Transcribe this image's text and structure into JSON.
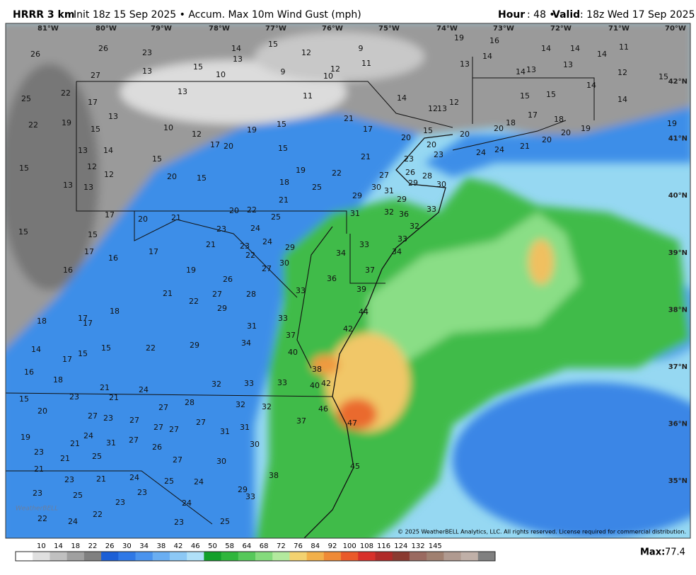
{
  "header": {
    "model": "HRRR 3 km",
    "init": "Init 18z 15 Sep 2025 • Accum. Max 10m Wind Gust (mph)",
    "hour_label": "Hour",
    "hour_text": ": 48 • ",
    "valid_label": "Valid",
    "valid_text": ": 18z Wed 17 Sep 2025"
  },
  "longitudes": [
    "81°W",
    "80°W",
    "79°W",
    "78°W",
    "77°W",
    "76°W",
    "75°W",
    "74°W",
    "73°W",
    "72°W",
    "71°W",
    "70°W"
  ],
  "latitudes": [
    "42°N",
    "41°N",
    "40°N",
    "39°N",
    "38°N",
    "37°N",
    "36°N",
    "35°N"
  ],
  "stations": {
    "values": [
      26,
      26,
      23,
      13,
      27,
      15,
      10,
      14,
      13,
      15,
      12,
      9,
      9,
      12,
      11,
      10,
      25,
      22,
      17,
      13,
      13,
      11,
      14,
      12,
      13,
      12,
      19,
      16,
      14,
      14,
      14,
      11,
      13,
      14,
      14,
      13,
      13,
      12,
      15,
      15,
      15,
      14,
      14,
      22,
      19,
      15,
      10,
      12,
      17,
      20,
      19,
      15,
      15,
      21,
      17,
      20,
      15,
      20,
      20,
      20,
      18,
      17,
      18,
      20,
      19,
      19,
      24,
      24,
      21,
      20,
      23,
      23,
      21,
      13,
      14,
      15,
      12,
      12,
      20,
      15,
      19,
      22,
      18,
      25,
      27,
      26,
      28,
      29,
      30,
      30,
      31,
      29,
      29,
      21,
      15,
      13,
      13,
      20,
      22,
      25,
      33,
      31,
      32,
      36,
      32,
      33,
      34,
      15,
      15,
      17,
      20,
      21,
      23,
      24,
      21,
      23,
      24,
      29,
      22,
      30,
      27,
      33,
      34,
      36,
      37,
      39,
      17,
      16,
      17,
      16,
      19,
      26,
      21,
      27,
      28,
      22,
      29,
      33,
      44,
      42,
      18,
      17,
      17,
      18,
      31,
      33,
      37,
      34,
      29,
      22,
      15,
      15,
      14,
      17,
      40,
      38,
      16,
      18,
      21,
      24,
      32,
      33,
      33,
      40,
      42,
      15,
      23,
      21,
      20,
      27,
      23,
      27,
      27,
      28,
      32,
      32,
      46,
      19,
      24,
      21,
      31,
      27,
      27,
      27,
      27,
      31,
      31,
      37,
      47,
      23,
      21,
      25,
      26,
      30,
      30,
      27,
      45,
      21,
      23,
      21,
      24,
      25,
      24,
      38,
      23,
      25,
      23,
      29,
      33,
      23,
      22,
      24,
      22,
      24,
      23,
      25
    ]
  },
  "colorbar": {
    "ticks": [
      10,
      14,
      18,
      22,
      26,
      30,
      34,
      38,
      42,
      46,
      50,
      58,
      64,
      68,
      72,
      76,
      84,
      92,
      100,
      108,
      116,
      124,
      132,
      145
    ],
    "colors": [
      "#ffffff",
      "#e0e0e0",
      "#c0c0c0",
      "#a0a0a0",
      "#808080",
      "#1c5fd6",
      "#2f78e6",
      "#4a93ee",
      "#6aaef2",
      "#8cc8f5",
      "#b0e0f8",
      "#12a02a",
      "#2fb63c",
      "#56c85a",
      "#84db7c",
      "#b3ea9e",
      "#f3d270",
      "#f2b04a",
      "#ef8a36",
      "#ea5a2a",
      "#d8302a",
      "#b02a28",
      "#8a3a30",
      "#9a6a60",
      "#a08070",
      "#b09a90",
      "#c0b0a8",
      "#808080"
    ]
  },
  "max_label": "Max:",
  "max_value": 77.4,
  "copyright": "© 2025 WeatherBELL Analytics, LLC. All rights reserved. License required for commercial distribution.",
  "logo": "WeatherBELL"
}
